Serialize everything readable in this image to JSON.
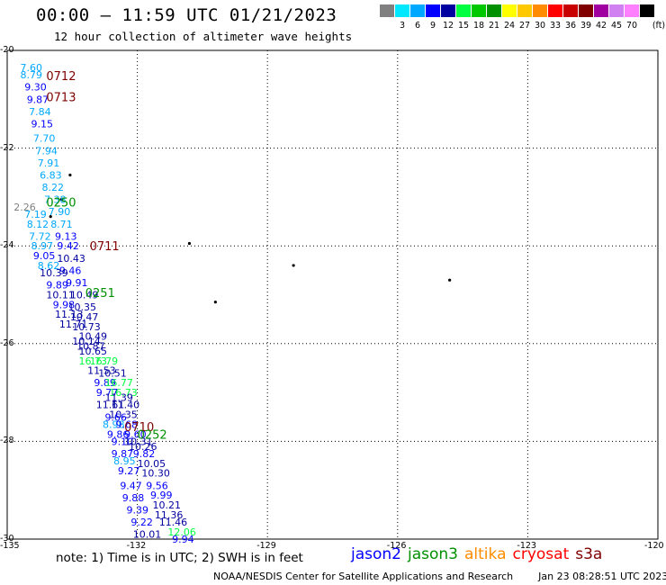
{
  "header": {
    "title": "00:00 – 11:59 UTC 01/21/2023",
    "subtitle": "12 hour collection of altimeter wave heights"
  },
  "legend": {
    "unit": "(ft)",
    "items": [
      {
        "label": "",
        "color": "#808080"
      },
      {
        "label": "3",
        "color": "#00e8ff"
      },
      {
        "label": "6",
        "color": "#00a8ff"
      },
      {
        "label": "9",
        "color": "#0000ff"
      },
      {
        "label": "12",
        "color": "#0000a0"
      },
      {
        "label": "15",
        "color": "#00ff40"
      },
      {
        "label": "18",
        "color": "#00c800"
      },
      {
        "label": "21",
        "color": "#009000"
      },
      {
        "label": "24",
        "color": "#ffff00"
      },
      {
        "label": "27",
        "color": "#ffc800"
      },
      {
        "label": "30",
        "color": "#ff8c00"
      },
      {
        "label": "33",
        "color": "#ff0000"
      },
      {
        "label": "36",
        "color": "#c80000"
      },
      {
        "label": "39",
        "color": "#800000"
      },
      {
        "label": "42",
        "color": "#a000a0"
      },
      {
        "label": "45",
        "color": "#d080f0"
      },
      {
        "label": "70",
        "color": "#ff80ff"
      },
      {
        "label": "",
        "color": "#000000"
      }
    ]
  },
  "map": {
    "lon_range": [
      -135,
      -120
    ],
    "lat_range": [
      -30,
      -20
    ],
    "lon_ticks": [
      "-135",
      "-132",
      "-129",
      "-126",
      "-123",
      "-120"
    ],
    "lat_ticks": [
      "-20",
      "-22",
      "-24",
      "-26",
      "-28",
      "-30"
    ],
    "islands": [
      [
        -133.55,
        -22.55
      ],
      [
        -134.0,
        -23.4
      ],
      [
        -133.75,
        -23.05
      ],
      [
        -130.8,
        -23.95
      ],
      [
        -128.4,
        -24.4
      ],
      [
        -130.2,
        -25.15
      ],
      [
        -124.8,
        -24.7
      ]
    ],
    "pass_labels": [
      {
        "text": "0713",
        "lon": -134.1,
        "lat": -20.95,
        "color": "#800000"
      },
      {
        "text": "0712",
        "lon": -134.1,
        "lat": -20.52,
        "color": "#800000"
      },
      {
        "text": "0250",
        "lon": -134.1,
        "lat": -23.1,
        "color": "#009000"
      },
      {
        "text": "0711",
        "lon": -133.1,
        "lat": -24.0,
        "color": "#800000"
      },
      {
        "text": "0251",
        "lon": -133.2,
        "lat": -24.95,
        "color": "#009000"
      },
      {
        "text": "0710",
        "lon": -132.3,
        "lat": -27.7,
        "color": "#800000"
      },
      {
        "text": "0252",
        "lon": -132.0,
        "lat": -27.85,
        "color": "#009000"
      }
    ],
    "swh_points": [
      {
        "v": "7.60",
        "lon": -134.7,
        "lat": -20.35,
        "c": "#00a8ff"
      },
      {
        "v": "8.79",
        "lon": -134.7,
        "lat": -20.5,
        "c": "#00a8ff"
      },
      {
        "v": "9.30",
        "lon": -134.6,
        "lat": -20.75,
        "c": "#0000ff"
      },
      {
        "v": "9.87",
        "lon": -134.55,
        "lat": -21.0,
        "c": "#0000ff"
      },
      {
        "v": "7.84",
        "lon": -134.5,
        "lat": -21.25,
        "c": "#00a8ff"
      },
      {
        "v": "9.15",
        "lon": -134.45,
        "lat": -21.5,
        "c": "#0000ff"
      },
      {
        "v": "7.70",
        "lon": -134.4,
        "lat": -21.8,
        "c": "#00a8ff"
      },
      {
        "v": "7.94",
        "lon": -134.35,
        "lat": -22.05,
        "c": "#00a8ff"
      },
      {
        "v": "7.91",
        "lon": -134.3,
        "lat": -22.3,
        "c": "#00a8ff"
      },
      {
        "v": "6.83",
        "lon": -134.25,
        "lat": -22.55,
        "c": "#00a8ff"
      },
      {
        "v": "8.22",
        "lon": -134.2,
        "lat": -22.8,
        "c": "#00a8ff"
      },
      {
        "v": "7.38",
        "lon": -134.15,
        "lat": -23.05,
        "c": "#00a8ff"
      },
      {
        "v": "2.26",
        "lon": -134.85,
        "lat": -23.2,
        "c": "#808080"
      },
      {
        "v": "7.90",
        "lon": -134.05,
        "lat": -23.3,
        "c": "#00a8ff"
      },
      {
        "v": "7.19",
        "lon": -134.6,
        "lat": -23.35,
        "c": "#00a8ff"
      },
      {
        "v": "8.12",
        "lon": -134.55,
        "lat": -23.55,
        "c": "#00a8ff"
      },
      {
        "v": "8.71",
        "lon": -134.0,
        "lat": -23.55,
        "c": "#00a8ff"
      },
      {
        "v": "7.72",
        "lon": -134.5,
        "lat": -23.8,
        "c": "#00a8ff"
      },
      {
        "v": "9.13",
        "lon": -133.9,
        "lat": -23.8,
        "c": "#0000ff"
      },
      {
        "v": "8.97",
        "lon": -134.45,
        "lat": -24.0,
        "c": "#00a8ff"
      },
      {
        "v": "9.42",
        "lon": -133.85,
        "lat": -24.0,
        "c": "#0000ff"
      },
      {
        "v": "9.05",
        "lon": -134.4,
        "lat": -24.2,
        "c": "#0000ff"
      },
      {
        "v": "10.43",
        "lon": -133.85,
        "lat": -24.25,
        "c": "#0000a0"
      },
      {
        "v": "8.62",
        "lon": -134.3,
        "lat": -24.4,
        "c": "#00a8ff"
      },
      {
        "v": "9.46",
        "lon": -133.8,
        "lat": -24.5,
        "c": "#0000ff"
      },
      {
        "v": "10.39",
        "lon": -134.25,
        "lat": -24.55,
        "c": "#0000a0"
      },
      {
        "v": "9.91",
        "lon": -133.65,
        "lat": -24.75,
        "c": "#0000ff"
      },
      {
        "v": "9.89",
        "lon": -134.1,
        "lat": -24.8,
        "c": "#0000ff"
      },
      {
        "v": "10.11",
        "lon": -134.1,
        "lat": -25.0,
        "c": "#0000a0"
      },
      {
        "v": "10.49",
        "lon": -133.55,
        "lat": -25.0,
        "c": "#0000a0"
      },
      {
        "v": "9.98",
        "lon": -133.95,
        "lat": -25.2,
        "c": "#0000ff"
      },
      {
        "v": "10.35",
        "lon": -133.6,
        "lat": -25.25,
        "c": "#0000a0"
      },
      {
        "v": "11.13",
        "lon": -133.9,
        "lat": -25.4,
        "c": "#0000a0"
      },
      {
        "v": "10.47",
        "lon": -133.55,
        "lat": -25.45,
        "c": "#0000a0"
      },
      {
        "v": "11.71",
        "lon": -133.8,
        "lat": -25.6,
        "c": "#0000a0"
      },
      {
        "v": "10.73",
        "lon": -133.5,
        "lat": -25.65,
        "c": "#0000a0"
      },
      {
        "v": "10.49",
        "lon": -133.35,
        "lat": -25.85,
        "c": "#0000a0"
      },
      {
        "v": "10.14",
        "lon": -133.5,
        "lat": -25.95,
        "c": "#0000a0"
      },
      {
        "v": "10.87",
        "lon": -133.4,
        "lat": -26.05,
        "c": "#0000a0"
      },
      {
        "v": "10.65",
        "lon": -133.35,
        "lat": -26.15,
        "c": "#0000a0"
      },
      {
        "v": "16.73",
        "lon": -133.35,
        "lat": -26.35,
        "c": "#00ff40"
      },
      {
        "v": "16.79",
        "lon": -133.1,
        "lat": -26.35,
        "c": "#00ff40"
      },
      {
        "v": "11.53",
        "lon": -133.15,
        "lat": -26.55,
        "c": "#0000a0"
      },
      {
        "v": "10.51",
        "lon": -132.9,
        "lat": -26.6,
        "c": "#0000a0"
      },
      {
        "v": "9.89",
        "lon": -133.0,
        "lat": -26.8,
        "c": "#0000ff"
      },
      {
        "v": "16.77",
        "lon": -132.75,
        "lat": -26.8,
        "c": "#00ff40"
      },
      {
        "v": "9.77",
        "lon": -132.95,
        "lat": -27.0,
        "c": "#0000ff"
      },
      {
        "v": "16.73",
        "lon": -132.65,
        "lat": -27.0,
        "c": "#00ff40"
      },
      {
        "v": "11.39",
        "lon": -132.75,
        "lat": -27.1,
        "c": "#0000a0"
      },
      {
        "v": "11.61",
        "lon": -132.95,
        "lat": -27.25,
        "c": "#0000a0"
      },
      {
        "v": "11.40",
        "lon": -132.6,
        "lat": -27.25,
        "c": "#0000a0"
      },
      {
        "v": "10.35",
        "lon": -132.65,
        "lat": -27.45,
        "c": "#0000a0"
      },
      {
        "v": "9.66",
        "lon": -132.75,
        "lat": -27.5,
        "c": "#0000ff"
      },
      {
        "v": "8.98",
        "lon": -132.8,
        "lat": -27.65,
        "c": "#00a8ff"
      },
      {
        "v": "9.68",
        "lon": -132.5,
        "lat": -27.65,
        "c": "#0000ff"
      },
      {
        "v": "9.86",
        "lon": -132.7,
        "lat": -27.85,
        "c": "#0000ff"
      },
      {
        "v": "9.60",
        "lon": -132.3,
        "lat": -27.85,
        "c": "#0000ff"
      },
      {
        "v": "9.10",
        "lon": -132.6,
        "lat": -28.0,
        "c": "#0000ff"
      },
      {
        "v": "10.31",
        "lon": -132.3,
        "lat": -28.0,
        "c": "#0000a0"
      },
      {
        "v": "10.26",
        "lon": -132.2,
        "lat": -28.1,
        "c": "#0000a0"
      },
      {
        "v": "9.87",
        "lon": -132.6,
        "lat": -28.25,
        "c": "#0000ff"
      },
      {
        "v": "9.82",
        "lon": -132.1,
        "lat": -28.25,
        "c": "#0000ff"
      },
      {
        "v": "8.95",
        "lon": -132.55,
        "lat": -28.4,
        "c": "#00a8ff"
      },
      {
        "v": "10.05",
        "lon": -132.0,
        "lat": -28.45,
        "c": "#0000a0"
      },
      {
        "v": "9.27",
        "lon": -132.45,
        "lat": -28.6,
        "c": "#0000ff"
      },
      {
        "v": "10.30",
        "lon": -131.9,
        "lat": -28.65,
        "c": "#0000a0"
      },
      {
        "v": "9.47",
        "lon": -132.4,
        "lat": -28.9,
        "c": "#0000ff"
      },
      {
        "v": "9.56",
        "lon": -131.8,
        "lat": -28.9,
        "c": "#0000ff"
      },
      {
        "v": "9.99",
        "lon": -131.7,
        "lat": -29.1,
        "c": "#0000ff"
      },
      {
        "v": "9.88",
        "lon": -132.35,
        "lat": -29.15,
        "c": "#0000ff"
      },
      {
        "v": "10.21",
        "lon": -131.65,
        "lat": -29.3,
        "c": "#0000a0"
      },
      {
        "v": "9.39",
        "lon": -132.25,
        "lat": -29.4,
        "c": "#0000ff"
      },
      {
        "v": "11.36",
        "lon": -131.6,
        "lat": -29.5,
        "c": "#0000a0"
      },
      {
        "v": "9.22",
        "lon": -132.15,
        "lat": -29.65,
        "c": "#0000ff"
      },
      {
        "v": "11.46",
        "lon": -131.5,
        "lat": -29.65,
        "c": "#0000a0"
      },
      {
        "v": "12.06",
        "lon": -131.3,
        "lat": -29.85,
        "c": "#00ff40"
      },
      {
        "v": "10.01",
        "lon": -132.1,
        "lat": -29.9,
        "c": "#0000a0"
      },
      {
        "v": "9.94",
        "lon": -131.2,
        "lat": -30.0,
        "c": "#0000ff"
      }
    ]
  },
  "note": "note: 1) Time is in UTC; 2) SWH is in feet",
  "satellites": [
    {
      "name": "jason2",
      "color": "#0000ff"
    },
    {
      "name": "jason3",
      "color": "#009000"
    },
    {
      "name": "altika",
      "color": "#ff8c00"
    },
    {
      "name": "cryosat",
      "color": "#ff0000"
    },
    {
      "name": "s3a",
      "color": "#800000"
    }
  ],
  "footer": {
    "agency": "NOAA/NESDIS Center for Satellite Applications and Research",
    "timestamp": "Jan 23 08:28:51 UTC 2023"
  }
}
